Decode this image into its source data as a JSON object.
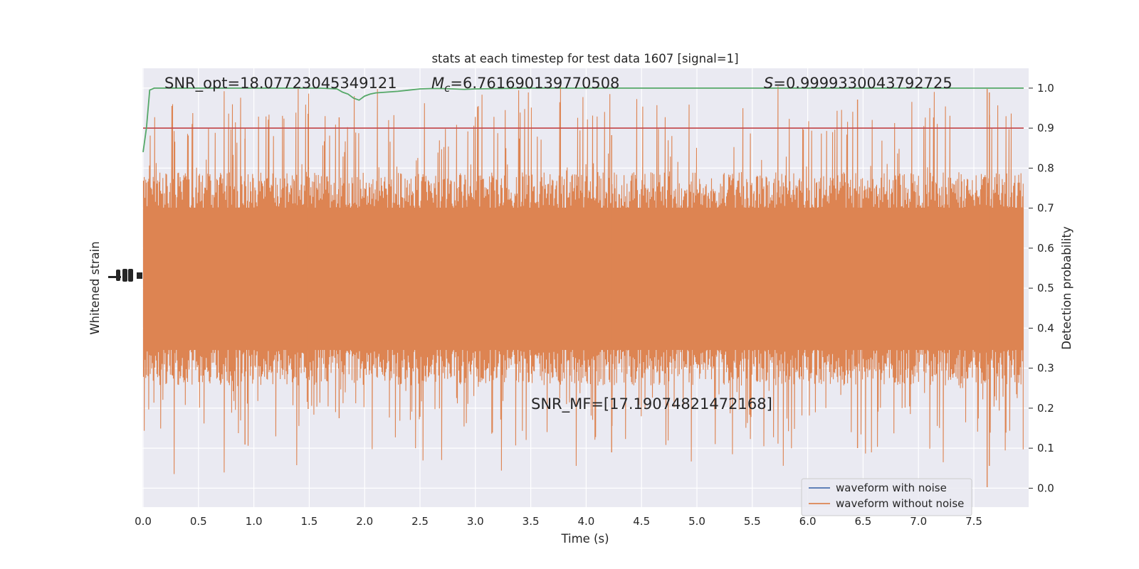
{
  "chart_data": {
    "type": "line",
    "title": "stats at each timestep for test data 1607 [signal=1]",
    "xlabel": "Time (s)",
    "ylabel_left": "Whitened strain",
    "ylabel_right": "Detection probability",
    "xlim": [
      0.0,
      8.0
    ],
    "xticks": [
      "0.0",
      "0.5",
      "1.0",
      "1.5",
      "2.0",
      "2.5",
      "3.0",
      "3.5",
      "4.0",
      "4.5",
      "5.0",
      "5.5",
      "6.0",
      "6.5",
      "7.0",
      "7.5"
    ],
    "ylim_right": [
      -0.05,
      1.05
    ],
    "yticks_right": [
      "0.0",
      "0.1",
      "0.2",
      "0.3",
      "0.4",
      "0.5",
      "0.6",
      "0.7",
      "0.8",
      "0.9",
      "1.0"
    ],
    "grid": true,
    "legend": {
      "placement": "lower-right",
      "entries": [
        "waveform with noise",
        "waveform without noise"
      ]
    },
    "annotations": {
      "snr_opt": "SNR_opt=18.07723045349121",
      "mc_sym": "M",
      "mc_sub": "c",
      "mc_val": "=6.761690139770508",
      "s_sym": "S",
      "s_val": "=0.9999330043792725",
      "snr_mf": "SNR_MF=[17.19074821472168]"
    },
    "series": [
      {
        "name": "waveform with noise",
        "color": "#4c72b0"
      },
      {
        "name": "waveform without noise",
        "color": "#dd8452"
      },
      {
        "color": "#55a868",
        "x": [
          0.0,
          0.03,
          0.06,
          0.1,
          0.2,
          0.4,
          0.6,
          0.8,
          1.0,
          1.2,
          1.4,
          1.6,
          1.75,
          1.8,
          1.85,
          1.9,
          1.95,
          2.0,
          2.05,
          2.1,
          2.2,
          2.3,
          2.4,
          2.5,
          2.6,
          2.7,
          2.8,
          2.9,
          3.0,
          3.2,
          3.5,
          4.0,
          4.5,
          5.0,
          5.5,
          6.0,
          6.5,
          7.0,
          7.5,
          7.95
        ],
        "y": [
          0.84,
          0.9,
          0.995,
          1.0,
          1.0,
          1.0,
          1.0,
          1.0,
          1.0,
          1.0,
          1.0,
          1.0,
          0.998,
          0.99,
          0.985,
          0.975,
          0.97,
          0.98,
          0.985,
          0.988,
          0.99,
          0.992,
          0.995,
          0.998,
          0.999,
          0.999,
          0.998,
          0.997,
          0.998,
          0.999,
          1.0,
          1.0,
          1.0,
          1.0,
          1.0,
          1.0,
          1.0,
          1.0,
          1.0,
          1.0
        ]
      },
      {
        "color": "#c44e52",
        "x": [
          0.0,
          7.95
        ],
        "y": [
          0.9,
          0.9
        ]
      }
    ]
  }
}
